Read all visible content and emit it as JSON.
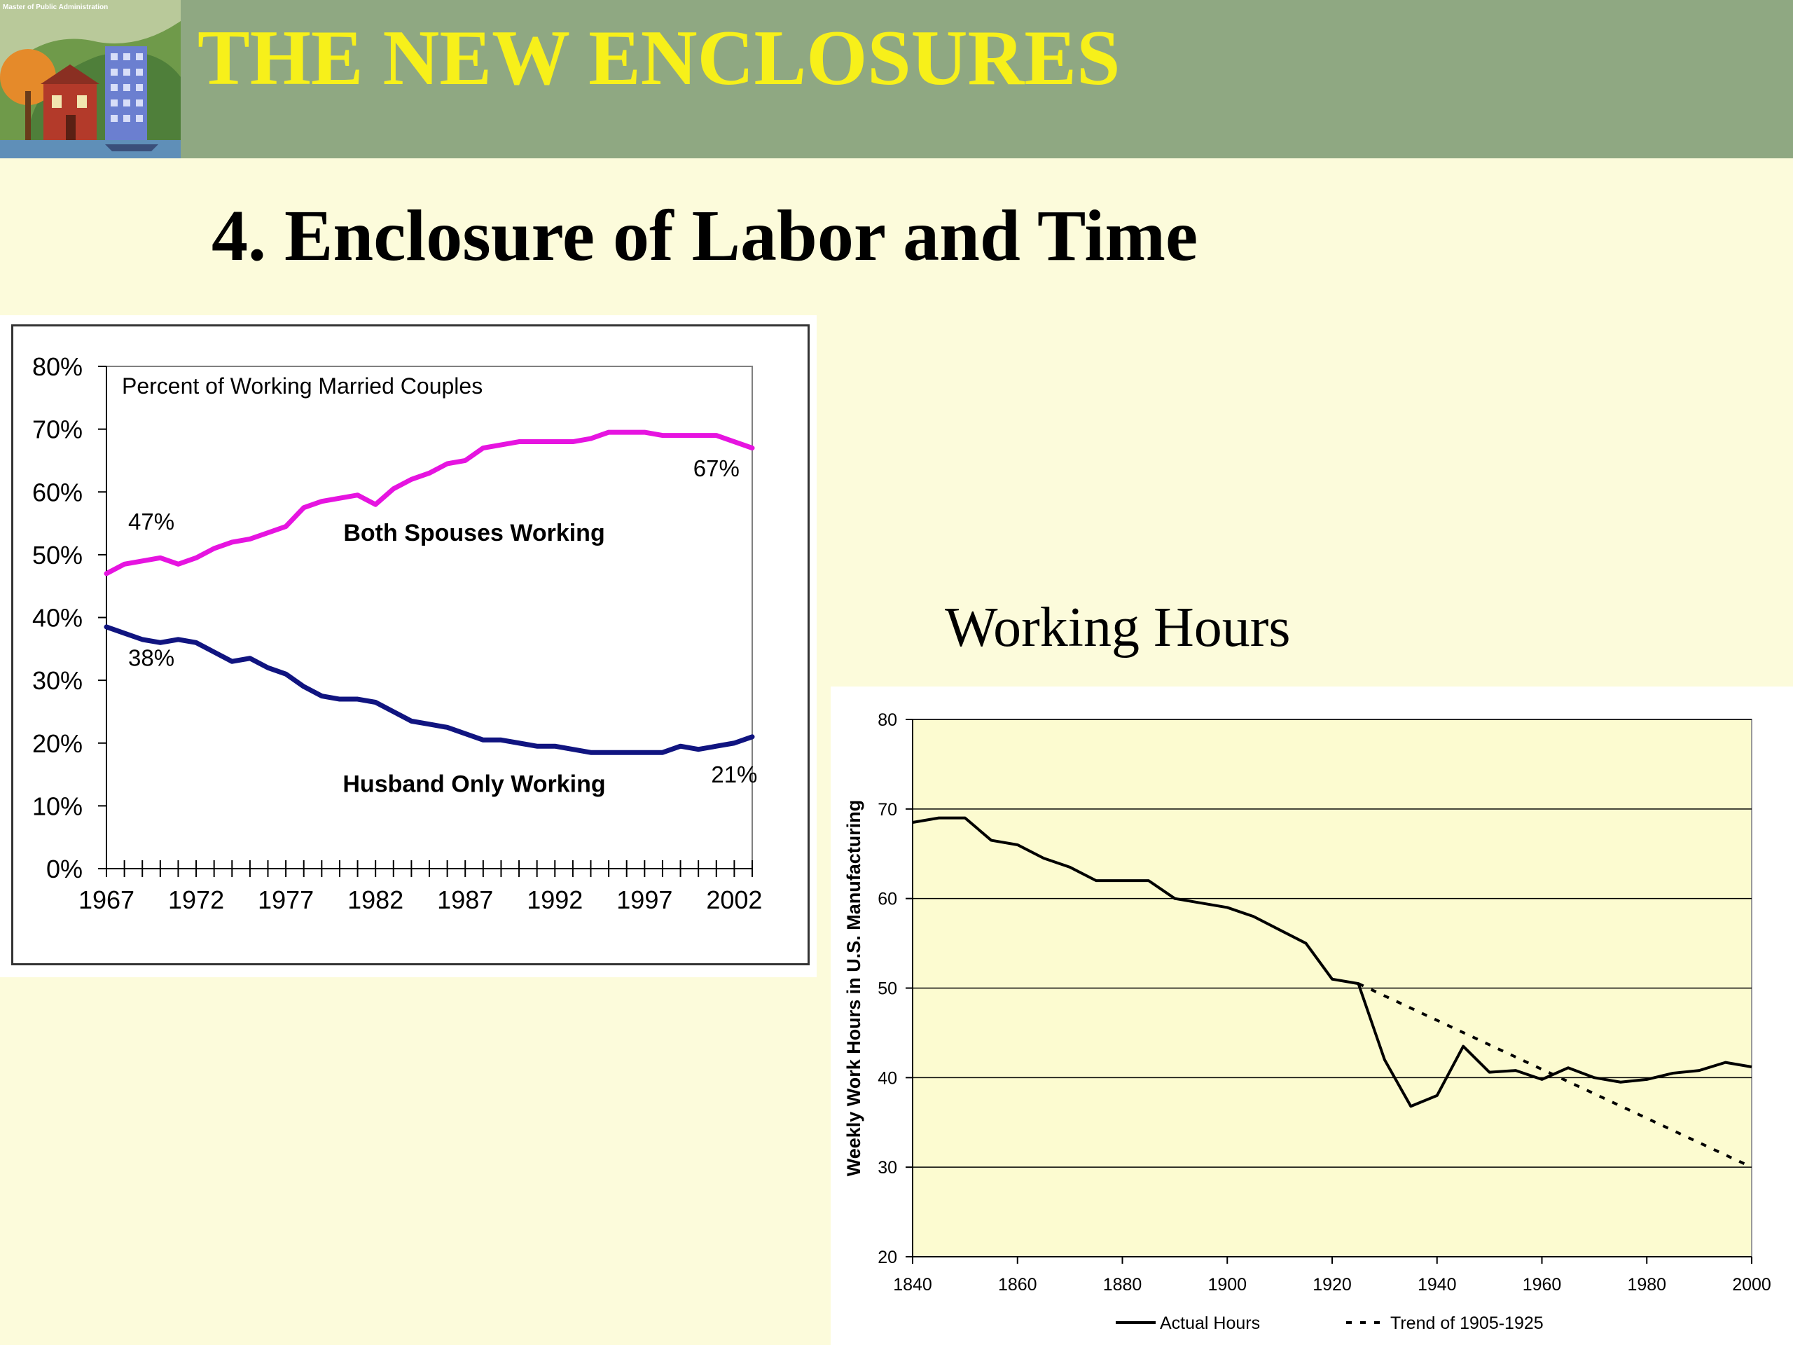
{
  "header": {
    "logo_caption": "Master of Public Administration",
    "deck_title": "THE NEW ENCLOSURES",
    "colors": {
      "band": "#8fa882",
      "title": "#f7f01a",
      "background": "#fcfbdb"
    }
  },
  "slide": {
    "title": "4. Enclosure of Labor and Time"
  },
  "chart_data": [
    {
      "type": "line",
      "title": "Percent of Working Married Couples",
      "xlabel": "",
      "ylabel": "",
      "x_tick_labels": [
        "1967",
        "1972",
        "1977",
        "1982",
        "1987",
        "1992",
        "1997",
        "2002"
      ],
      "y_tick_labels": [
        "0%",
        "10%",
        "20%",
        "30%",
        "40%",
        "50%",
        "60%",
        "70%",
        "80%"
      ],
      "xlim": [
        1967,
        2003
      ],
      "ylim": [
        0,
        80
      ],
      "grid": false,
      "x": [
        1967,
        1968,
        1969,
        1970,
        1971,
        1972,
        1973,
        1974,
        1975,
        1976,
        1977,
        1978,
        1979,
        1980,
        1981,
        1982,
        1983,
        1984,
        1985,
        1986,
        1987,
        1988,
        1989,
        1990,
        1991,
        1992,
        1993,
        1994,
        1995,
        1996,
        1997,
        1998,
        1999,
        2000,
        2001,
        2002,
        2003
      ],
      "series": [
        {
          "name": "Both Spouses Working",
          "color": "#e614e0",
          "values": [
            47,
            48.5,
            49,
            49.5,
            48.5,
            49.5,
            51,
            52,
            52.5,
            53.5,
            54.5,
            57.5,
            58.5,
            59,
            59.5,
            58,
            60.5,
            62,
            63,
            64.5,
            65,
            67,
            67.5,
            68,
            68,
            68,
            68,
            68.5,
            69.5,
            69.5,
            69.5,
            69,
            69,
            69,
            69,
            68,
            67
          ]
        },
        {
          "name": "Husband Only Working",
          "color": "#101480",
          "values": [
            38.5,
            37.5,
            36.5,
            36,
            36.5,
            36,
            34.5,
            33,
            33.5,
            32,
            31,
            29,
            27.5,
            27,
            27,
            26.5,
            25,
            23.5,
            23,
            22.5,
            21.5,
            20.5,
            20.5,
            20,
            19.5,
            19.5,
            19,
            18.5,
            18.5,
            18.5,
            18.5,
            18.5,
            19.5,
            19,
            19.5,
            20,
            21
          ]
        }
      ],
      "annotations": [
        {
          "text": "47%",
          "x": 1969.5,
          "y": 54
        },
        {
          "text": "67%",
          "x": 2001,
          "y": 62.5
        },
        {
          "text": "38%",
          "x": 1969.5,
          "y": 32.3
        },
        {
          "text": "21%",
          "x": 2002,
          "y": 13.7
        },
        {
          "text": "Both Spouses Working",
          "x": 1987.5,
          "y": 52.2
        },
        {
          "text": "Husband Only Working",
          "x": 1987.5,
          "y": 12.2
        }
      ]
    },
    {
      "type": "line",
      "title": "Working Hours",
      "xlabel": "",
      "ylabel": "Weekly Work Hours in U.S. Manufacturing",
      "x_tick_labels": [
        "1840",
        "1860",
        "1880",
        "1900",
        "1920",
        "1940",
        "1960",
        "1980",
        "2000"
      ],
      "y_tick_labels": [
        "20",
        "30",
        "40",
        "50",
        "60",
        "70",
        "80"
      ],
      "xlim": [
        1840,
        2000
      ],
      "ylim": [
        20,
        80
      ],
      "grid": true,
      "legend_position": "bottom",
      "plot_background": "#fcfbd0",
      "series": [
        {
          "name": "Actual Hours",
          "color": "#000000",
          "style": "solid",
          "x": [
            1840,
            1845,
            1850,
            1855,
            1860,
            1865,
            1870,
            1875,
            1880,
            1885,
            1890,
            1895,
            1900,
            1905,
            1910,
            1915,
            1920,
            1925,
            1930,
            1935,
            1940,
            1945,
            1950,
            1955,
            1960,
            1965,
            1970,
            1975,
            1980,
            1985,
            1990,
            1995,
            2000
          ],
          "values": [
            68.5,
            69,
            69,
            66.5,
            66,
            64.5,
            63.5,
            62,
            62,
            62,
            60,
            59.5,
            59,
            58,
            56.5,
            55,
            51,
            50.5,
            42,
            36.8,
            38,
            43.5,
            40.6,
            40.8,
            39.8,
            41.1,
            40,
            39.5,
            39.8,
            40.5,
            40.8,
            41.7,
            41.2
          ]
        },
        {
          "name": "Trend of 1905-1925",
          "color": "#000000",
          "style": "dashed",
          "x": [
            1925,
            2000
          ],
          "values": [
            50.5,
            30
          ]
        }
      ]
    }
  ]
}
